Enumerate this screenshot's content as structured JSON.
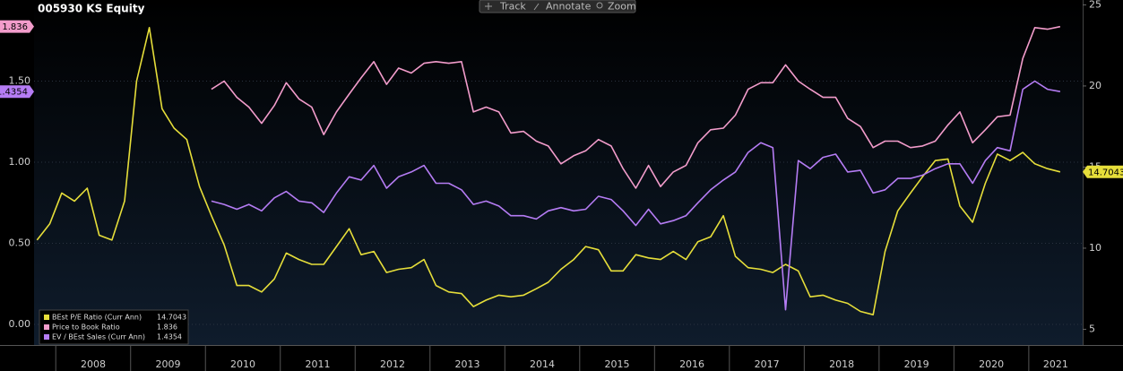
{
  "toolbar": {
    "buttons": [
      "Track",
      "Annotate",
      "Zoom"
    ]
  },
  "chart_data": {
    "type": "line",
    "title": "005930 KS Equity",
    "x": [
      2007.75,
      2007.92,
      2008.08,
      2008.25,
      2008.42,
      2008.58,
      2008.75,
      2008.92,
      2009.08,
      2009.25,
      2009.42,
      2009.58,
      2009.75,
      2009.92,
      2010.08,
      2010.25,
      2010.42,
      2010.58,
      2010.75,
      2010.92,
      2011.08,
      2011.25,
      2011.42,
      2011.58,
      2011.75,
      2011.92,
      2012.08,
      2012.25,
      2012.42,
      2012.58,
      2012.75,
      2012.92,
      2013.08,
      2013.25,
      2013.42,
      2013.58,
      2013.75,
      2013.92,
      2014.08,
      2014.25,
      2014.42,
      2014.58,
      2014.75,
      2014.92,
      2015.08,
      2015.25,
      2015.42,
      2015.58,
      2015.75,
      2015.92,
      2016.08,
      2016.25,
      2016.42,
      2016.58,
      2016.75,
      2016.92,
      2017.08,
      2017.25,
      2017.42,
      2017.58,
      2017.75,
      2017.92,
      2018.08,
      2018.25,
      2018.42,
      2018.58,
      2018.75,
      2018.92,
      2019.08,
      2019.25,
      2019.42,
      2019.58,
      2019.75,
      2019.92,
      2020.08,
      2020.25,
      2020.42,
      2020.58,
      2020.75,
      2020.92,
      2021.08,
      2021.25,
      2021.42
    ],
    "series": [
      {
        "name": "BEst P/E Ratio (Curr Ann)",
        "color": "#e6de3a",
        "axis": "y2",
        "values": [
          10.5,
          11.5,
          13.4,
          12.9,
          13.7,
          10.8,
          10.5,
          12.9,
          20.3,
          23.6,
          18.6,
          17.4,
          16.7,
          13.8,
          12.0,
          10.2,
          7.7,
          7.7,
          7.3,
          8.1,
          9.7,
          9.3,
          9.0,
          9.0,
          10.1,
          11.2,
          9.6,
          9.8,
          8.5,
          8.7,
          8.8,
          9.3,
          7.7,
          7.3,
          7.2,
          6.4,
          6.8,
          7.1,
          7.0,
          7.1,
          7.5,
          7.9,
          8.7,
          9.3,
          10.1,
          9.9,
          8.6,
          8.6,
          9.6,
          9.4,
          9.3,
          9.8,
          9.3,
          10.4,
          10.7,
          12.0,
          9.5,
          8.8,
          8.7,
          8.5,
          9.0,
          8.6,
          7.0,
          7.1,
          6.8,
          6.6,
          6.1,
          5.9,
          9.8,
          12.3,
          13.4,
          14.4,
          15.4,
          15.5,
          12.6,
          11.6,
          14.0,
          15.8,
          15.4,
          15.9,
          15.2,
          14.9,
          14.7043
        ]
      },
      {
        "name": "Price to Book Ratio",
        "color": "#f29ccb",
        "axis": "y",
        "values": [
          null,
          null,
          null,
          null,
          null,
          null,
          null,
          null,
          null,
          null,
          null,
          null,
          null,
          null,
          1.45,
          1.5,
          1.4,
          1.34,
          1.24,
          1.35,
          1.49,
          1.39,
          1.34,
          1.17,
          1.31,
          1.42,
          1.52,
          1.62,
          1.48,
          1.58,
          1.55,
          1.61,
          1.62,
          1.61,
          1.62,
          1.31,
          1.34,
          1.31,
          1.18,
          1.19,
          1.13,
          1.1,
          0.99,
          1.04,
          1.07,
          1.14,
          1.1,
          0.96,
          0.84,
          0.98,
          0.85,
          0.94,
          0.98,
          1.12,
          1.2,
          1.21,
          1.29,
          1.45,
          1.49,
          1.49,
          1.6,
          1.5,
          1.45,
          1.4,
          1.4,
          1.27,
          1.22,
          1.09,
          1.13,
          1.13,
          1.09,
          1.1,
          1.13,
          1.23,
          1.31,
          1.12,
          1.2,
          1.28,
          1.29,
          1.64,
          1.83,
          1.82,
          1.836
        ]
      },
      {
        "name": "EV / BEst Sales (Curr Ann)",
        "color": "#b57cf4",
        "axis": "y",
        "values": [
          null,
          null,
          null,
          null,
          null,
          null,
          null,
          null,
          null,
          null,
          null,
          null,
          null,
          null,
          0.76,
          0.74,
          0.71,
          0.74,
          0.7,
          0.78,
          0.82,
          0.76,
          0.75,
          0.69,
          0.81,
          0.91,
          0.89,
          0.98,
          0.84,
          0.91,
          0.94,
          0.98,
          0.87,
          0.87,
          0.83,
          0.74,
          0.76,
          0.73,
          0.67,
          0.67,
          0.65,
          0.7,
          0.72,
          0.7,
          0.71,
          0.79,
          0.77,
          0.7,
          0.61,
          0.71,
          0.62,
          0.64,
          0.67,
          0.75,
          0.83,
          0.89,
          0.94,
          1.06,
          1.12,
          1.09,
          0.09,
          1.01,
          0.96,
          1.03,
          1.05,
          0.94,
          0.95,
          0.81,
          0.83,
          0.9,
          0.9,
          0.92,
          0.96,
          0.99,
          0.99,
          0.87,
          1.01,
          1.09,
          1.07,
          1.45,
          1.5,
          1.45,
          1.4354
        ]
      }
    ],
    "xlim": [
      2007.71,
      2021.72
    ],
    "xticks": [
      2008,
      2009,
      2010,
      2011,
      2012,
      2013,
      2014,
      2015,
      2016,
      2017,
      2018,
      2019,
      2020,
      2021
    ],
    "ylim": [
      -0.127,
      2.0
    ],
    "yticks": [
      {
        "value": 0,
        "label": "0.00"
      },
      {
        "value": 0.5,
        "label": "0.50"
      },
      {
        "value": 1,
        "label": "1.00"
      },
      {
        "value": 1.5,
        "label": "1.50"
      }
    ],
    "y2lim": [
      4.03,
      25.3
    ],
    "y2ticks": [
      5,
      10,
      15,
      20,
      25
    ],
    "grid": true,
    "legend": "bottom-left"
  }
}
